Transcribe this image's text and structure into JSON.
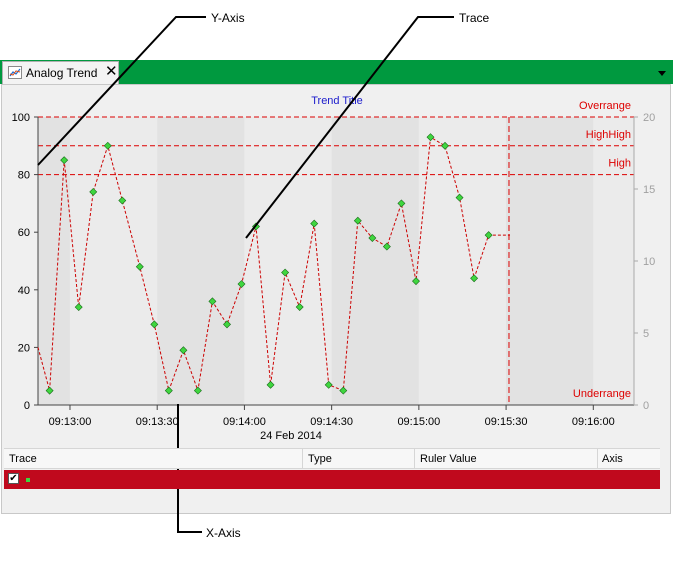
{
  "callouts": {
    "y_axis": "Y-Axis",
    "trace": "Trace",
    "x_axis": "X-Axis"
  },
  "tab": {
    "label": "Analog Trend",
    "close_glyph": "✕",
    "icon": "trend-chart-icon",
    "menu_icon": "chevron-down-icon"
  },
  "colors": {
    "tab_strip": "#00993f",
    "trace": "#cc0000",
    "marker": "#3fd63f",
    "limit": "#dd0000",
    "title": "#1a1acc",
    "row_highlight": "#c0091d"
  },
  "chart_data": {
    "type": "line",
    "title": "Trend Title",
    "x_label": "24 Feb 2014",
    "x_ticks": [
      "09:13:00",
      "09:13:30",
      "09:14:00",
      "09:14:30",
      "09:15:00",
      "09:15:30",
      "09:16:00"
    ],
    "xlim": [
      "09:12:49",
      "09:16:14"
    ],
    "y_ticks": [
      "100",
      "80",
      "60",
      "40",
      "20",
      "0"
    ],
    "ylim": [
      0,
      100
    ],
    "y2_ticks": [
      "20",
      "15",
      "10",
      "5",
      "0"
    ],
    "y2lim": [
      0,
      20
    ],
    "grid": false,
    "cursor_time": "09:15:31",
    "limits": [
      {
        "name": "Overrange",
        "value": 100
      },
      {
        "name": "HighHigh",
        "value": 90
      },
      {
        "name": "High",
        "value": 80
      },
      {
        "name": "Underrange",
        "value": 0
      }
    ],
    "series": [
      {
        "x": [
          "09:12:49",
          "09:12:53",
          "09:12:58",
          "09:13:03",
          "09:13:08",
          "09:13:13",
          "09:13:18",
          "09:13:24",
          "09:13:29",
          "09:13:34",
          "09:13:39",
          "09:13:44",
          "09:13:49",
          "09:13:54",
          "09:13:59",
          "09:14:04",
          "09:14:09",
          "09:14:14",
          "09:14:19",
          "09:14:24",
          "09:14:29",
          "09:14:34",
          "09:14:39",
          "09:14:44",
          "09:14:49",
          "09:14:54",
          "09:14:59",
          "09:15:04",
          "09:15:09",
          "09:15:14",
          "09:15:19",
          "09:15:24",
          "09:15:31"
        ],
        "y": [
          20,
          5,
          85,
          34,
          74,
          90,
          71,
          48,
          28,
          5,
          19,
          5,
          36,
          28,
          42,
          62,
          7,
          46,
          34,
          63,
          7,
          5,
          64,
          58,
          55,
          70,
          43,
          93,
          90,
          72,
          44,
          59,
          59
        ]
      }
    ]
  },
  "table": {
    "columns": [
      "Trace",
      "Type",
      "Ruler Value",
      "Axis"
    ],
    "rows": [
      {
        "checked": "✔",
        "trace": "",
        "type": "",
        "ruler_value": "",
        "axis": ""
      }
    ]
  }
}
